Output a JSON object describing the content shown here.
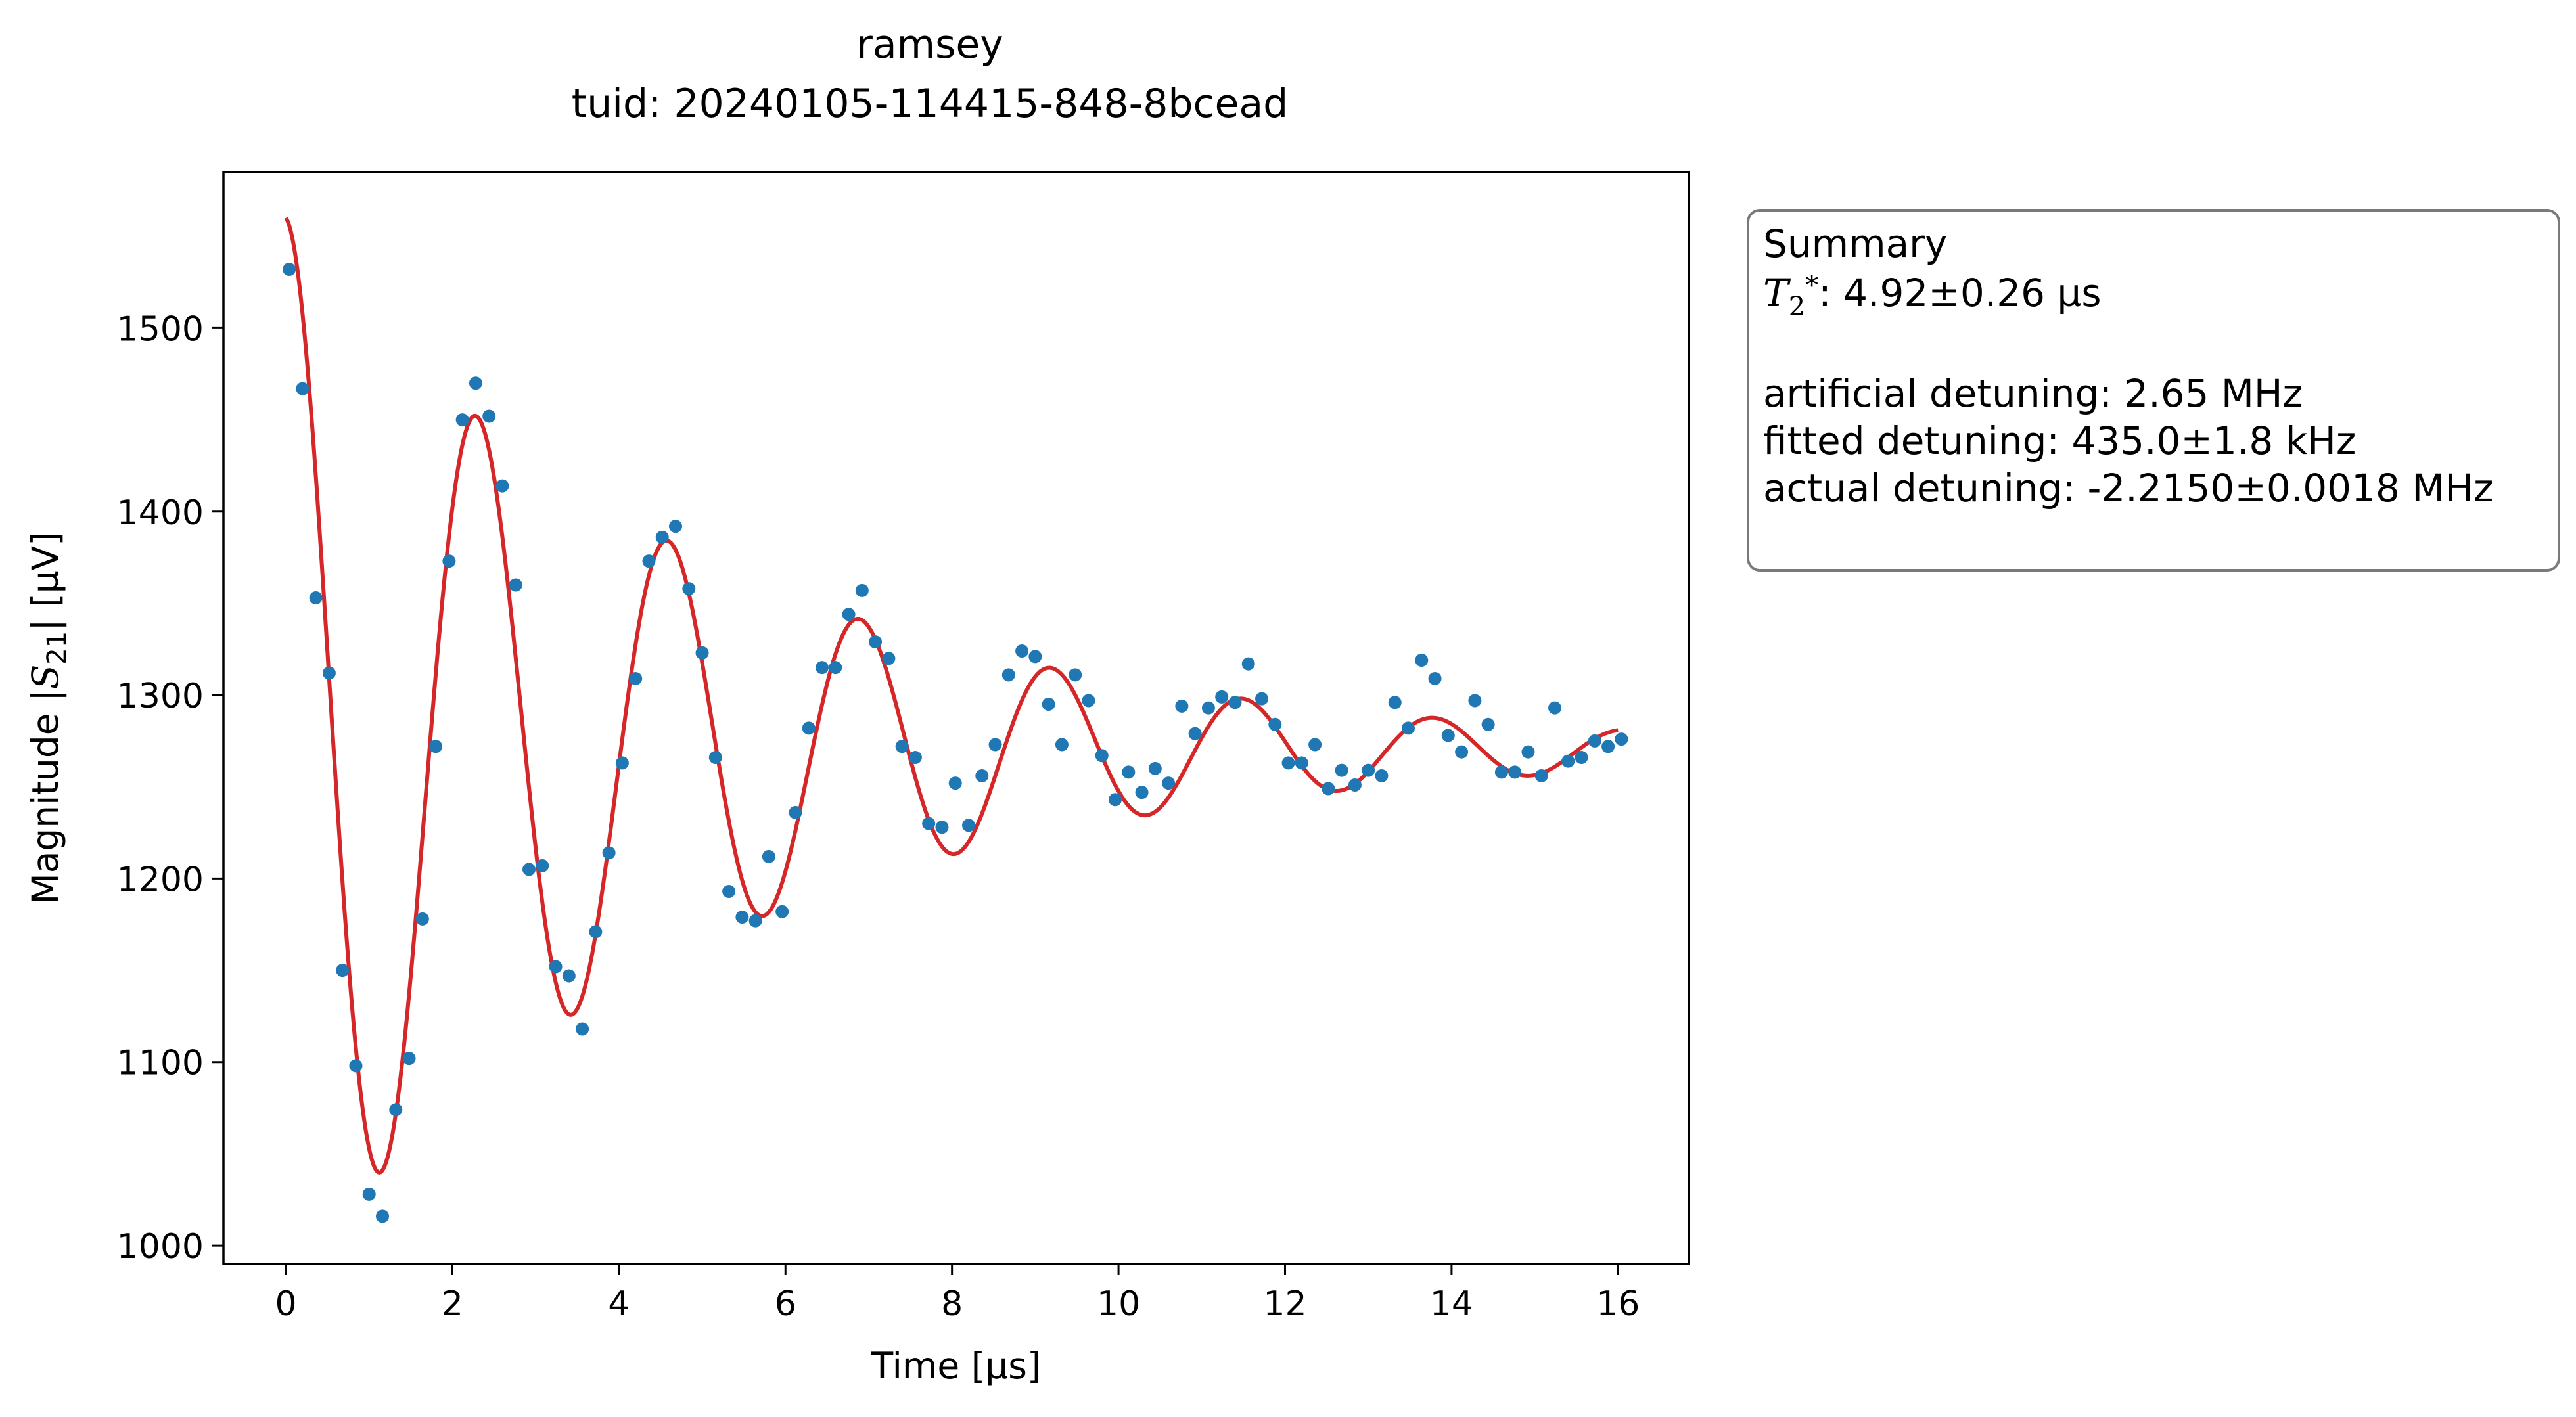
{
  "chart_data": {
    "type": "scatter",
    "title": "ramsey",
    "subtitle": "tuid: 20240105-114415-848-8bcead",
    "xlabel": "Time [µs]",
    "ylabel_prefix": "Magnitude |",
    "ylabel_symbol": "S",
    "ylabel_subscript": "21",
    "ylabel_suffix": "| [µV]",
    "xlim": [
      -0.75,
      16.85
    ],
    "ylim": [
      990,
      1585
    ],
    "xticks": [
      0,
      2,
      4,
      6,
      8,
      10,
      12,
      14,
      16
    ],
    "yticks": [
      1000,
      1100,
      1200,
      1300,
      1400,
      1500
    ],
    "grid": false,
    "colors": {
      "data": "#1f77b4",
      "fit": "#d62728",
      "summary_border": "#7a7a7a"
    },
    "series": [
      {
        "kind": "points",
        "x": [
          0.04,
          0.2,
          0.36,
          0.52,
          0.68,
          0.84,
          1.0,
          1.16,
          1.32,
          1.48,
          1.64,
          1.8,
          1.96,
          2.12,
          2.28,
          2.44,
          2.6,
          2.76,
          2.92,
          3.08,
          3.24,
          3.4,
          3.56,
          3.72,
          3.88,
          4.04,
          4.2,
          4.36,
          4.52,
          4.68,
          4.84,
          5.0,
          5.16,
          5.32,
          5.48,
          5.64,
          5.8,
          5.96,
          6.12,
          6.28,
          6.44,
          6.6,
          6.76,
          6.92,
          7.08,
          7.24,
          7.4,
          7.56,
          7.72,
          7.88,
          8.04,
          8.2,
          8.36,
          8.52,
          8.68,
          8.84,
          9.0,
          9.16,
          9.32,
          9.48,
          9.64,
          9.8,
          9.96,
          10.12,
          10.28,
          10.44,
          10.6,
          10.76,
          10.92,
          11.08,
          11.24,
          11.4,
          11.56,
          11.72,
          11.88,
          12.04,
          12.2,
          12.36,
          12.52,
          12.68,
          12.84,
          13.0,
          13.16,
          13.32,
          13.48,
          13.64,
          13.8,
          13.96,
          14.12,
          14.28,
          14.44,
          14.6,
          14.76,
          14.92,
          15.08,
          15.24,
          15.4,
          15.56,
          15.72,
          15.88,
          16.04
        ],
        "y": [
          1532,
          1467,
          1353,
          1312,
          1150,
          1098,
          1028,
          1016,
          1074,
          1102,
          1178,
          1272,
          1373,
          1450,
          1470,
          1452,
          1414,
          1360,
          1205,
          1207,
          1152,
          1147,
          1118,
          1171,
          1214,
          1263,
          1309,
          1373,
          1386,
          1392,
          1358,
          1323,
          1266,
          1193,
          1179,
          1177,
          1212,
          1182,
          1236,
          1282,
          1315,
          1315,
          1344,
          1357,
          1329,
          1320,
          1272,
          1266,
          1230,
          1228,
          1252,
          1229,
          1256,
          1273,
          1311,
          1324,
          1321,
          1295,
          1273,
          1311,
          1297,
          1267,
          1243,
          1258,
          1247,
          1260,
          1252,
          1294,
          1279,
          1293,
          1299,
          1296,
          1317,
          1298,
          1284,
          1263,
          1263,
          1273,
          1249,
          1259,
          1251,
          1259,
          1256,
          1296,
          1282,
          1319,
          1309,
          1278,
          1269,
          1297,
          1284,
          1258,
          1258,
          1269,
          1256,
          1293,
          1264,
          1266,
          1275,
          1272,
          1276
        ]
      },
      {
        "kind": "fit",
        "model": "offset + amplitude*exp(-t/T2)*cos(2*pi*f*t + phase)",
        "offset": 1270,
        "amplitude": 290,
        "T2_us": 4.92,
        "frequency_MHz": 0.435,
        "phase": 0,
        "t_range": [
          0,
          16.0
        ]
      }
    ]
  },
  "summary": {
    "heading": "Summary",
    "t2_symbol": "T",
    "t2_sub": "2",
    "t2_sup": "*",
    "t2_value": ": 4.92±0.26 µs",
    "artificial_detuning": "artificial detuning: 2.65 MHz",
    "fitted_detuning": "fitted detuning: 435.0±1.8 kHz",
    "actual_detuning": "actual detuning: -2.2150±0.0018 MHz"
  }
}
